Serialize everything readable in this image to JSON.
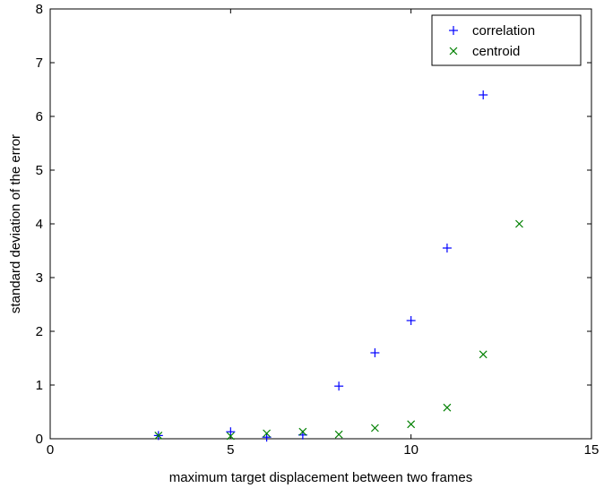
{
  "chart_data": {
    "type": "scatter",
    "title": "",
    "xlabel": "maximum target displacement between two frames",
    "ylabel": "standard deviation of the error",
    "xlim": [
      0,
      15
    ],
    "ylim": [
      0,
      8
    ],
    "xticks": [
      0,
      5,
      10,
      15
    ],
    "yticks": [
      0,
      1,
      2,
      3,
      4,
      5,
      6,
      7,
      8
    ],
    "grid": false,
    "legend_position": "top-right",
    "series": [
      {
        "name": "correlation",
        "marker": "plus",
        "color": "#0000ff",
        "x": [
          3,
          5,
          6,
          7,
          8,
          9,
          10,
          11,
          12
        ],
        "y": [
          0.06,
          0.13,
          0.03,
          0.07,
          0.98,
          1.6,
          2.2,
          3.55,
          6.4
        ]
      },
      {
        "name": "centroid",
        "marker": "x",
        "color": "#008000",
        "x": [
          3,
          5,
          6,
          7,
          8,
          9,
          10,
          11,
          12,
          13
        ],
        "y": [
          0.06,
          0.05,
          0.1,
          0.13,
          0.08,
          0.2,
          0.27,
          0.58,
          1.57,
          4.0
        ]
      }
    ]
  }
}
